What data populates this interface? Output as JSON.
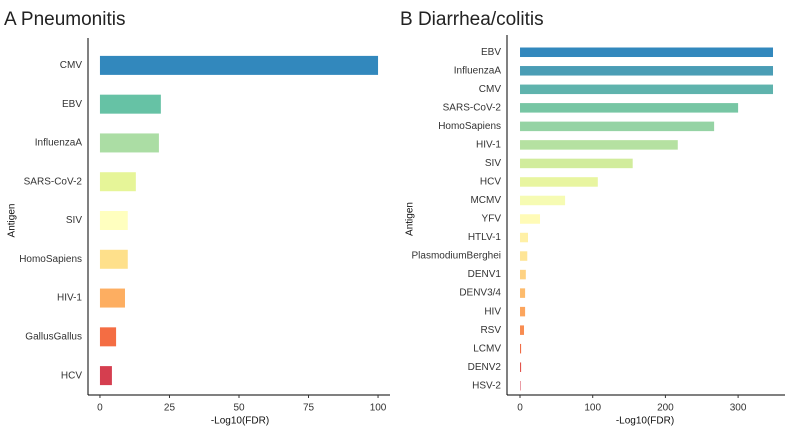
{
  "chart_data": [
    {
      "type": "hbar",
      "title": "A Pneumonitis",
      "x_label": "-Log10(FDR)",
      "y_label": "Antigen",
      "categories": [
        "CMV",
        "EBV",
        "InfluenzaA",
        "SARS-CoV-2",
        "SIV",
        "HomoSapiens",
        "HIV-1",
        "GallusGallus",
        "HCV"
      ],
      "values": [
        100,
        21.9,
        21.2,
        12.9,
        10,
        10,
        9,
        5.8,
        4.3
      ],
      "colors": [
        "#3288bd",
        "#66c2a5",
        "#abdda4",
        "#e6f598",
        "#ffffbf",
        "#fee08b",
        "#fdae61",
        "#f46d43",
        "#d53e4f"
      ],
      "xlim": [
        -4.3,
        104.3
      ],
      "xticks": [
        0,
        25,
        50,
        75,
        100
      ]
    },
    {
      "type": "hbar",
      "title": "B Diarrhea/colitis",
      "x_label": "-Log10(FDR)",
      "y_label": "Antigen",
      "categories": [
        "EBV",
        "InfluenzaA",
        "CMV",
        "SARS-CoV-2",
        "HomoSapiens",
        "HIV-1",
        "SIV",
        "HCV",
        "MCMV",
        "YFV",
        "HTLV-1",
        "PlasmodiumBerghei",
        "DENV1",
        "DENV3/4",
        "HIV",
        "RSV",
        "LCMV",
        "DENV2",
        "HSV-2"
      ],
      "values": [
        348,
        348,
        348,
        300,
        267,
        217,
        155,
        107,
        62,
        27.5,
        11,
        10,
        8,
        7,
        7,
        5.5,
        1.5,
        1.5,
        0.7
      ],
      "colors": [
        "#3288bd",
        "#4a9db5",
        "#5fb3ad",
        "#77c6a4",
        "#95d3a4",
        "#b5e1a1",
        "#d1ec9c",
        "#e8f5a0",
        "#f6fbb3",
        "#fffbb7",
        "#fff0a6",
        "#fee597",
        "#fed283",
        "#fdbb6c",
        "#fca55d",
        "#f88c51",
        "#f06b43",
        "#e2514a",
        "#d53e4f"
      ],
      "xlim": [
        -17.9,
        364.5
      ],
      "xticks": [
        0,
        100,
        200,
        300
      ]
    }
  ]
}
